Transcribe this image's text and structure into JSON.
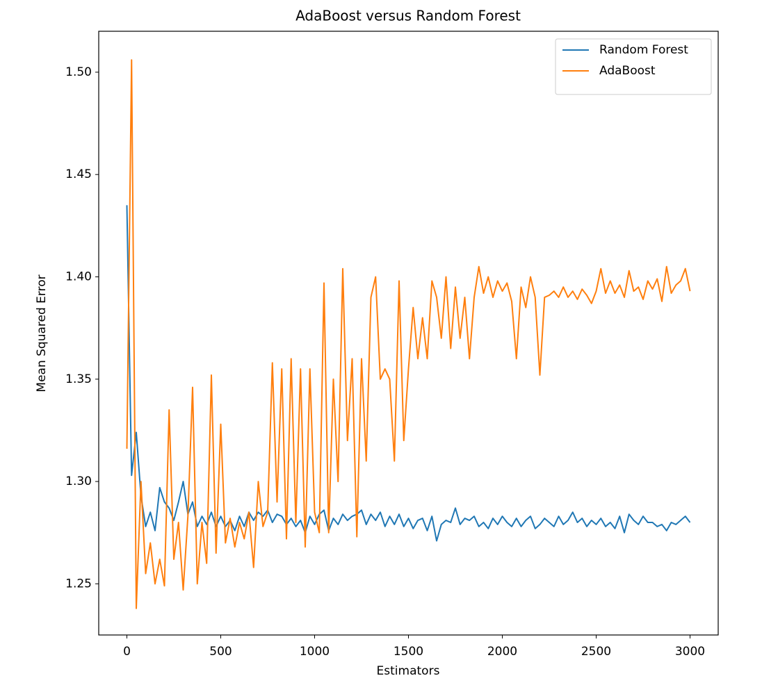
{
  "chart_data": {
    "type": "line",
    "title": "AdaBoost versus Random Forest",
    "x_label": "Estimators",
    "y_label": "Mean Squared Error",
    "legend": "upper right",
    "x": [
      0,
      25,
      50,
      75,
      100,
      125,
      150,
      175,
      200,
      225,
      250,
      275,
      300,
      325,
      350,
      375,
      400,
      425,
      450,
      475,
      500,
      525,
      550,
      575,
      600,
      625,
      650,
      675,
      700,
      725,
      750,
      775,
      800,
      825,
      850,
      875,
      900,
      925,
      950,
      975,
      1000,
      1025,
      1050,
      1075,
      1100,
      1125,
      1150,
      1175,
      1200,
      1225,
      1250,
      1275,
      1300,
      1325,
      1350,
      1375,
      1400,
      1425,
      1450,
      1475,
      1500,
      1525,
      1550,
      1575,
      1600,
      1625,
      1650,
      1675,
      1700,
      1725,
      1750,
      1775,
      1800,
      1825,
      1850,
      1875,
      1900,
      1925,
      1950,
      1975,
      2000,
      2025,
      2050,
      2075,
      2100,
      2125,
      2150,
      2175,
      2200,
      2225,
      2250,
      2275,
      2300,
      2325,
      2350,
      2375,
      2400,
      2425,
      2450,
      2475,
      2500,
      2525,
      2550,
      2575,
      2600,
      2625,
      2650,
      2675,
      2700,
      2725,
      2750,
      2775,
      2800,
      2825,
      2850,
      2875,
      2900,
      2925,
      2950,
      2975,
      3000
    ],
    "series": [
      {
        "name": "Random Forest",
        "color": "#1f77b4",
        "values": [
          1.435,
          1.303,
          1.324,
          1.293,
          1.278,
          1.285,
          1.276,
          1.297,
          1.29,
          1.287,
          1.281,
          1.29,
          1.3,
          1.284,
          1.29,
          1.278,
          1.283,
          1.279,
          1.285,
          1.278,
          1.283,
          1.278,
          1.281,
          1.276,
          1.283,
          1.278,
          1.285,
          1.281,
          1.285,
          1.283,
          1.286,
          1.28,
          1.284,
          1.283,
          1.279,
          1.282,
          1.278,
          1.281,
          1.275,
          1.283,
          1.279,
          1.284,
          1.286,
          1.276,
          1.282,
          1.279,
          1.284,
          1.281,
          1.283,
          1.284,
          1.286,
          1.279,
          1.284,
          1.281,
          1.285,
          1.278,
          1.283,
          1.279,
          1.284,
          1.278,
          1.282,
          1.277,
          1.281,
          1.282,
          1.276,
          1.283,
          1.271,
          1.279,
          1.281,
          1.28,
          1.287,
          1.279,
          1.282,
          1.281,
          1.283,
          1.278,
          1.28,
          1.277,
          1.282,
          1.279,
          1.283,
          1.28,
          1.278,
          1.282,
          1.278,
          1.281,
          1.283,
          1.277,
          1.279,
          1.282,
          1.28,
          1.278,
          1.283,
          1.279,
          1.281,
          1.285,
          1.28,
          1.282,
          1.278,
          1.281,
          1.279,
          1.282,
          1.278,
          1.28,
          1.277,
          1.283,
          1.275,
          1.284,
          1.281,
          1.279,
          1.283,
          1.28,
          1.28,
          1.278,
          1.279,
          1.276,
          1.28,
          1.279,
          1.281,
          1.283,
          1.28
        ]
      },
      {
        "name": "AdaBoost",
        "color": "#ff7f0e",
        "values": [
          1.316,
          1.506,
          1.238,
          1.3,
          1.255,
          1.27,
          1.25,
          1.262,
          1.249,
          1.335,
          1.262,
          1.28,
          1.247,
          1.283,
          1.346,
          1.25,
          1.28,
          1.26,
          1.352,
          1.265,
          1.328,
          1.27,
          1.282,
          1.268,
          1.28,
          1.272,
          1.285,
          1.258,
          1.3,
          1.278,
          1.285,
          1.358,
          1.29,
          1.355,
          1.272,
          1.36,
          1.28,
          1.355,
          1.268,
          1.355,
          1.285,
          1.275,
          1.397,
          1.275,
          1.35,
          1.3,
          1.404,
          1.32,
          1.36,
          1.273,
          1.36,
          1.31,
          1.39,
          1.4,
          1.35,
          1.355,
          1.35,
          1.31,
          1.398,
          1.32,
          1.355,
          1.385,
          1.36,
          1.38,
          1.36,
          1.398,
          1.39,
          1.37,
          1.4,
          1.365,
          1.395,
          1.37,
          1.39,
          1.36,
          1.39,
          1.405,
          1.392,
          1.4,
          1.39,
          1.398,
          1.393,
          1.397,
          1.388,
          1.36,
          1.395,
          1.385,
          1.4,
          1.39,
          1.352,
          1.39,
          1.391,
          1.393,
          1.39,
          1.395,
          1.39,
          1.393,
          1.389,
          1.394,
          1.391,
          1.387,
          1.393,
          1.404,
          1.392,
          1.398,
          1.392,
          1.396,
          1.39,
          1.403,
          1.393,
          1.395,
          1.389,
          1.398,
          1.394,
          1.399,
          1.388,
          1.405,
          1.392,
          1.396,
          1.398,
          1.404,
          1.393
        ]
      }
    ],
    "xlim": [
      -150,
      3150
    ],
    "xticks": [
      0,
      500,
      1000,
      1500,
      2000,
      2500,
      3000
    ],
    "ylim": [
      1.225,
      1.52
    ],
    "yticks": [
      1.25,
      {
        "value": 1.3,
        "label": "1.30"
      },
      1.35,
      {
        "value": 1.4,
        "label": "1.40"
      },
      1.45,
      {
        "value": 1.5,
        "label": "1.50"
      }
    ]
  }
}
